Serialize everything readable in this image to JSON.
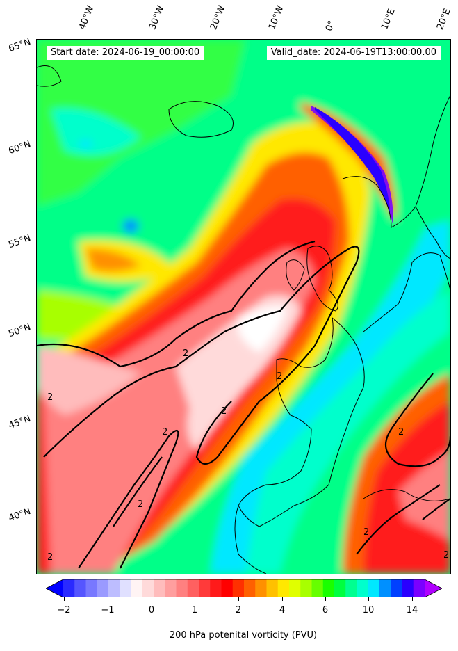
{
  "header": {
    "start_date": "Start date: 2024-06-19_00:00:00",
    "valid_date": "Valid_date: 2024-06-19T13:00:00.00"
  },
  "map": {
    "longitude_labels": [
      "40°W",
      "30°W",
      "20°W",
      "10°W",
      "0°",
      "10°E",
      "20°E"
    ],
    "latitude_labels": [
      "65°N",
      "60°N",
      "55°N",
      "50°N",
      "45°N",
      "40°N"
    ],
    "contour_label": "2",
    "contour_level": 2,
    "background_color": "#00ff88",
    "coastline_color": "#000000"
  },
  "colorbar": {
    "label": "200 hPa potenital vorticity (PVU)",
    "tick_labels": [
      "−2",
      "−1",
      "0",
      "1",
      "2",
      "4",
      "6",
      "10",
      "14"
    ],
    "colors": [
      "#0000ff",
      "#2a2aff",
      "#5555ff",
      "#7878ff",
      "#9a9aff",
      "#bdbdff",
      "#e0e0ff",
      "#fff4f4",
      "#ffdada",
      "#ffbcbc",
      "#ff9e9e",
      "#ff8080",
      "#ff6060",
      "#ff3a3a",
      "#ff1a1a",
      "#ff0000",
      "#ff3000",
      "#ff6000",
      "#ff9000",
      "#ffc000",
      "#ffe800",
      "#e0ff00",
      "#a8ff00",
      "#66ff00",
      "#1aff00",
      "#00ff40",
      "#00ff90",
      "#00ffcc",
      "#00e8ff",
      "#0090ff",
      "#0040ff",
      "#2a00ff",
      "#7a00ff",
      "#b000ff"
    ]
  }
}
